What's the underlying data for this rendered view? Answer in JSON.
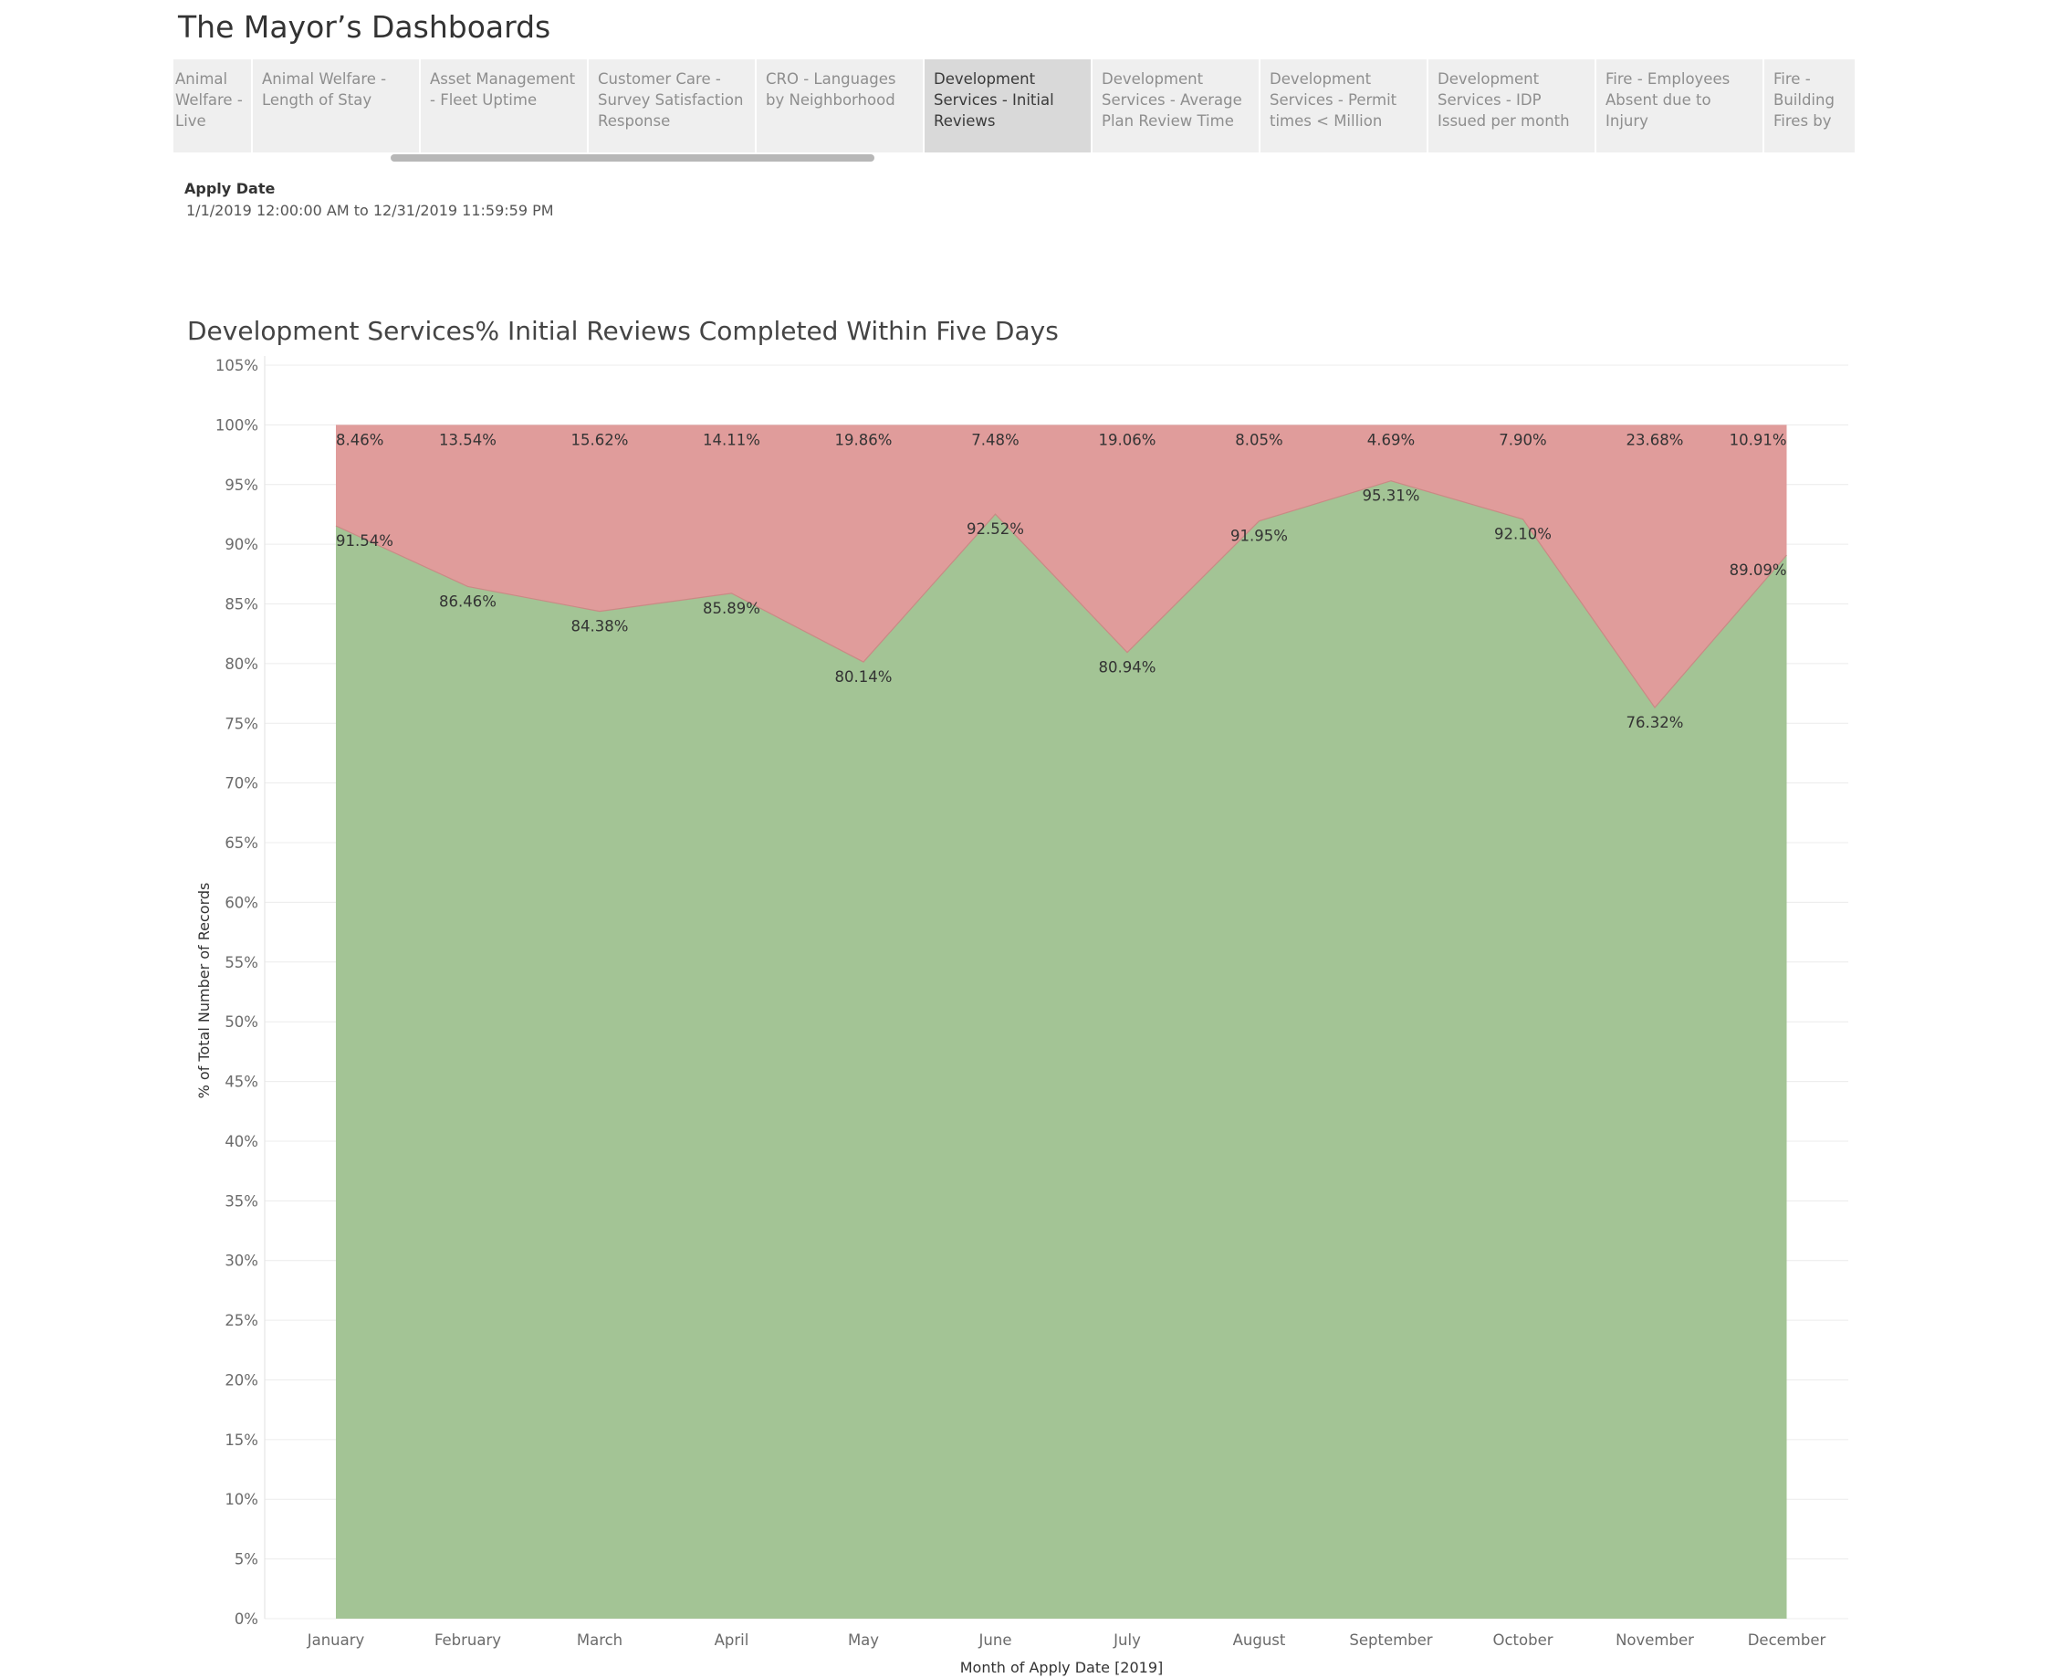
{
  "app": {
    "title": "The Mayor’s Dashboards"
  },
  "tabs": [
    {
      "label": "Animal Welfare - Live Exits",
      "active": false
    },
    {
      "label": "Animal Welfare - Length of Stay",
      "active": false
    },
    {
      "label": "Asset Management - Fleet Uptime",
      "active": false
    },
    {
      "label": "Customer Care - Survey Satisfaction Response",
      "active": false
    },
    {
      "label": "CRO - Languages by Neighborhood",
      "active": false
    },
    {
      "label": "Development Services - Initial Reviews",
      "active": true
    },
    {
      "label": "Development Services - Average Plan Review Time b..",
      "active": false
    },
    {
      "label": "Development Services - Permit times < Million",
      "active": false
    },
    {
      "label": "Development Services - IDP Issued per month",
      "active": false
    },
    {
      "label": "Fire - Employees Absent due to Injury",
      "active": false
    },
    {
      "label": "Fire - Building Fires by M..",
      "active": false
    }
  ],
  "filter": {
    "label": "Apply Date",
    "value": "1/1/2019 12:00:00 AM to 12/31/2019 11:59:59 PM"
  },
  "colors": {
    "within": "#a3c495",
    "over": "#e09c9b",
    "grid": "#ececec"
  },
  "chart_data": {
    "type": "area",
    "stacked": true,
    "title": "Development Services% Initial Reviews Completed Within Five Days",
    "xlabel": "Month of Apply Date [2019]",
    "ylabel": "% of Total Number of Records",
    "ylim": [
      0,
      105
    ],
    "yticks": [
      "0%",
      "5%",
      "10%",
      "15%",
      "20%",
      "25%",
      "30%",
      "35%",
      "40%",
      "45%",
      "50%",
      "55%",
      "60%",
      "65%",
      "70%",
      "75%",
      "80%",
      "85%",
      "90%",
      "95%",
      "100%",
      "105%"
    ],
    "grid": true,
    "categories": [
      "January",
      "February",
      "March",
      "April",
      "May",
      "June",
      "July",
      "August",
      "September",
      "October",
      "November",
      "December"
    ],
    "series": [
      {
        "values": [
          91.54,
          86.46,
          84.38,
          85.89,
          80.14,
          92.52,
          80.94,
          91.95,
          95.31,
          92.1,
          76.32,
          89.09
        ],
        "labels": [
          "91.54%",
          "86.46%",
          "84.38%",
          "85.89%",
          "80.14%",
          "92.52%",
          "80.94%",
          "91.95%",
          "95.31%",
          "92.10%",
          "76.32%",
          "89.09%"
        ]
      },
      {
        "values": [
          8.46,
          13.54,
          15.62,
          14.11,
          19.86,
          7.48,
          19.06,
          8.05,
          4.69,
          7.9,
          23.68,
          10.91
        ],
        "labels": [
          "8.46%",
          "13.54%",
          "15.62%",
          "14.11%",
          "19.86%",
          "7.48%",
          "19.06%",
          "8.05%",
          "4.69%",
          "7.90%",
          "23.68%",
          "10.91%"
        ]
      }
    ]
  }
}
